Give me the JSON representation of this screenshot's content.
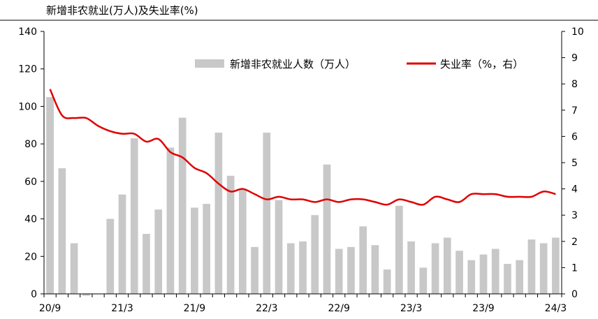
{
  "chart_data": {
    "type": "bar",
    "title": "新增非农就业(万人)及失业率(%)",
    "x": [
      "20/9",
      "20/10",
      "20/11",
      "20/12",
      "21/1",
      "21/2",
      "21/3",
      "21/4",
      "21/5",
      "21/6",
      "21/7",
      "21/8",
      "21/9",
      "21/10",
      "21/11",
      "21/12",
      "22/1",
      "22/2",
      "22/3",
      "22/4",
      "22/5",
      "22/6",
      "22/7",
      "22/8",
      "22/9",
      "22/10",
      "22/11",
      "22/12",
      "23/1",
      "23/2",
      "23/3",
      "23/4",
      "23/5",
      "23/6",
      "23/7",
      "23/8",
      "23/9",
      "23/10",
      "23/11",
      "23/12",
      "24/1",
      "24/2",
      "24/3"
    ],
    "x_tick_labels": [
      "20/9",
      "21/3",
      "21/9",
      "22/3",
      "22/9",
      "23/3",
      "23/9",
      "24/3"
    ],
    "series": [
      {
        "name": "新增非农就业人数（万人）",
        "axis": "left",
        "type": "bar",
        "color": "#c8c8c8",
        "values": [
          105,
          67,
          27,
          -1,
          0,
          40,
          53,
          83,
          32,
          45,
          78,
          94,
          46,
          48,
          86,
          63,
          56,
          25,
          86,
          50,
          27,
          28,
          42,
          69,
          24,
          25,
          36,
          26,
          13,
          47,
          28,
          14,
          27,
          30,
          23,
          18,
          21,
          24,
          16,
          18,
          29,
          27,
          30
        ]
      },
      {
        "name": "失业率（%，右）",
        "axis": "right",
        "type": "line",
        "color": "#e00000",
        "values": [
          7.8,
          6.8,
          6.7,
          6.7,
          6.4,
          6.2,
          6.1,
          6.1,
          5.8,
          5.9,
          5.4,
          5.2,
          4.8,
          4.6,
          4.2,
          3.9,
          4.0,
          3.8,
          3.6,
          3.7,
          3.6,
          3.6,
          3.5,
          3.6,
          3.5,
          3.6,
          3.6,
          3.5,
          3.4,
          3.6,
          3.5,
          3.4,
          3.7,
          3.6,
          3.5,
          3.8,
          3.8,
          3.8,
          3.7,
          3.7,
          3.7,
          3.9,
          3.8
        ]
      }
    ],
    "y_left": {
      "min": 0,
      "max": 140,
      "step": 20,
      "ticks": [
        "0",
        "20",
        "40",
        "60",
        "80",
        "100",
        "120",
        "140"
      ]
    },
    "y_right": {
      "min": 0,
      "max": 10,
      "step": 1,
      "ticks": [
        "0",
        "1",
        "2",
        "3",
        "4",
        "5",
        "6",
        "7",
        "8",
        "9",
        "10"
      ]
    },
    "grid": false,
    "legend": {
      "position": "top-right",
      "entries": [
        "新增非农就业人数（万人）",
        "失业率（%，右）"
      ]
    }
  }
}
